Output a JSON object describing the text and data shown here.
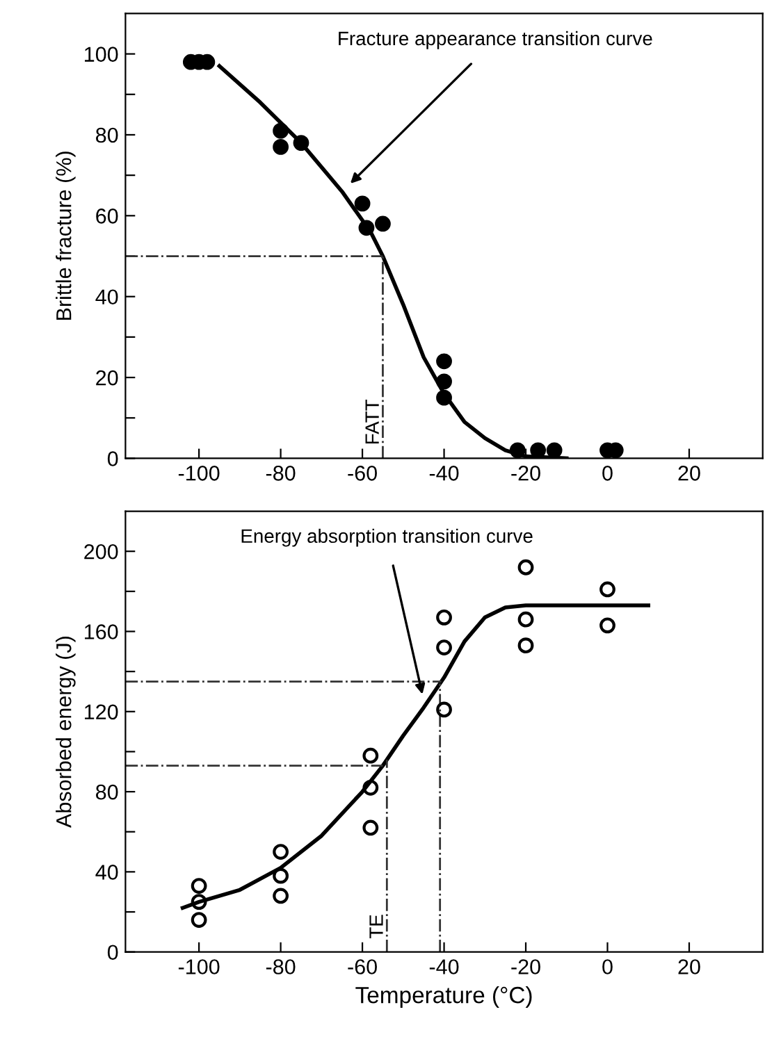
{
  "chart_data": [
    {
      "type": "scatter",
      "ylabel": "Brittle fracture (%)",
      "xlim": [
        -118,
        38
      ],
      "ylim": [
        0,
        110
      ],
      "xticks": [
        -100,
        -80,
        -60,
        -40,
        -20,
        0,
        20
      ],
      "yticks": [
        0,
        {
          "value": 10,
          "label": null
        },
        20,
        {
          "value": 30,
          "label": null
        },
        40,
        {
          "value": 50,
          "label": null
        },
        60,
        {
          "value": 70,
          "label": null
        },
        80,
        {
          "value": 90,
          "label": null
        },
        100
      ],
      "series": [
        {
          "marker": "circle",
          "color": "#000000",
          "x": [
            -102,
            -100,
            -98,
            -80,
            -80,
            -75,
            -60,
            -59,
            -55,
            -40,
            -40,
            -40,
            -22,
            -17,
            -13,
            0,
            2
          ],
          "values": [
            98,
            98,
            98,
            81,
            77,
            78,
            63,
            57,
            58,
            24,
            19,
            15,
            2,
            2,
            2,
            2,
            2
          ]
        },
        {
          "type": "line",
          "color": "#000000",
          "x": [
            -95,
            -85,
            -75,
            -65,
            -58,
            -55,
            -50,
            -45,
            -40,
            -35,
            -30,
            -25,
            -20,
            -10
          ],
          "values": [
            97,
            88,
            78,
            66,
            56,
            50,
            38,
            25,
            16,
            9,
            5,
            2,
            0.5,
            0
          ]
        }
      ],
      "ref_lines": [
        {
          "axis": "y",
          "value": 50,
          "label": null,
          "line_style": "dashdot"
        },
        {
          "axis": "x",
          "value": -55,
          "label": "FATT",
          "line_style": "dashdot"
        }
      ],
      "annotations": [
        "Fracture appearance transition curve"
      ]
    },
    {
      "type": "scatter",
      "ylabel": "Absorbed energy (J)",
      "xlabel": "Temperature (°C)",
      "xlim": [
        -118,
        38
      ],
      "ylim": [
        0,
        220
      ],
      "xticks": [
        -100,
        -80,
        -60,
        -40,
        -20,
        0,
        20
      ],
      "yticks": [
        0,
        {
          "value": 20,
          "label": null
        },
        40,
        {
          "value": 60,
          "label": null
        },
        80,
        {
          "value": 100,
          "label": null
        },
        120,
        {
          "value": 140,
          "label": null
        },
        160,
        {
          "value": 180,
          "label": null
        },
        200
      ],
      "series": [
        {
          "marker": "circle",
          "color": "#000000",
          "x": [
            -100,
            -100,
            -100,
            -80,
            -80,
            -80,
            -58,
            -58,
            -58,
            -40,
            -40,
            -40,
            -20,
            -20,
            -20,
            0,
            0
          ],
          "values": [
            33,
            25,
            16,
            50,
            38,
            28,
            98,
            82,
            62,
            167,
            152,
            121,
            192,
            166,
            153,
            181,
            163
          ]
        },
        {
          "type": "line",
          "color": "#000000",
          "x": [
            -104,
            -100,
            -90,
            -80,
            -70,
            -60,
            -55,
            -50,
            -45,
            -40,
            -35,
            -30,
            -25,
            -20,
            0,
            10
          ],
          "values": [
            22,
            25,
            31,
            42,
            58,
            80,
            93,
            108,
            122,
            137,
            155,
            167,
            172,
            173,
            173,
            173
          ]
        }
      ],
      "ref_lines": [
        {
          "axis": "y",
          "value": 135,
          "label": null,
          "line_style": "dashdot"
        },
        {
          "axis": "y",
          "value": 93,
          "label": null,
          "line_style": "dashdot"
        },
        {
          "axis": "x",
          "value": -41,
          "label": null,
          "line_style": "dashdot"
        },
        {
          "axis": "x",
          "value": -54,
          "label": "TE",
          "line_style": "dashdot"
        }
      ],
      "annotations": [
        "Energy absorption transition curve"
      ]
    }
  ]
}
